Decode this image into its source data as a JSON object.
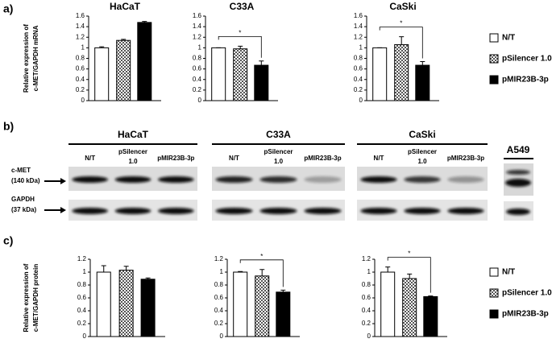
{
  "panels": {
    "a": "a)",
    "b": "b)",
    "c": "c)"
  },
  "chart_data": [
    {
      "type": "bar",
      "title": "HaCaT",
      "ylabel": [
        "Relative expression of",
        "c-MET/GAPDH mRNA"
      ],
      "values": [
        1.0,
        1.14,
        1.48
      ],
      "errors": [
        0.02,
        0.02,
        0.02
      ],
      "ylim": [
        0,
        1.6
      ],
      "yticks": [
        0,
        0.2,
        0.4,
        0.6,
        0.8,
        1,
        1.2,
        1.4,
        1.6
      ]
    },
    {
      "type": "bar",
      "title": "C33A",
      "values": [
        1.0,
        0.98,
        0.67
      ],
      "errors": [
        0.0,
        0.05,
        0.08
      ],
      "ylim": [
        0,
        1.6
      ],
      "yticks": [
        0,
        0.2,
        0.4,
        0.6,
        0.8,
        1,
        1.2,
        1.4,
        1.6
      ],
      "annotation": "*"
    },
    {
      "type": "bar",
      "title": "CaSki",
      "values": [
        1.0,
        1.06,
        0.67
      ],
      "errors": [
        0.0,
        0.15,
        0.07
      ],
      "ylim": [
        0,
        1.6
      ],
      "yticks": [
        0,
        0.2,
        0.4,
        0.6,
        0.8,
        1,
        1.2,
        1.4,
        1.6
      ],
      "annotation": "*"
    },
    {
      "type": "bar",
      "ylabel": [
        "Relative expression of",
        "c-MET/GAPDH protein"
      ],
      "values": [
        1.0,
        1.03,
        0.89
      ],
      "errors": [
        0.1,
        0.06,
        0.02
      ],
      "ylim": [
        0,
        1.2
      ],
      "yticks": [
        0,
        0.2,
        0.4,
        0.6,
        0.8,
        1,
        1.2
      ]
    },
    {
      "type": "bar",
      "values": [
        1.0,
        0.94,
        0.69
      ],
      "errors": [
        0.01,
        0.1,
        0.03
      ],
      "ylim": [
        0,
        1.2
      ],
      "yticks": [
        0,
        0.2,
        0.4,
        0.6,
        0.8,
        1,
        1.2
      ],
      "annotation": "*"
    },
    {
      "type": "bar",
      "values": [
        1.0,
        0.9,
        0.62
      ],
      "errors": [
        0.08,
        0.07,
        0.01
      ],
      "ylim": [
        0,
        1.2
      ],
      "yticks": [
        0,
        0.2,
        0.4,
        0.6,
        0.8,
        1,
        1.2
      ],
      "annotation": "*"
    }
  ],
  "legends": [
    [
      {
        "name": "N/T",
        "color": "#ffffff"
      },
      {
        "name": "pSilencer 1.0",
        "color": "checker"
      },
      {
        "name": "pMIR23B-3p",
        "color": "#000000"
      }
    ],
    [
      {
        "name": "N/T",
        "color": "#ffffff"
      },
      {
        "name": "pSilencer 1.0",
        "color": "checker"
      },
      {
        "name": "pMIR23B-3p",
        "color": "#000000"
      }
    ]
  ],
  "blot": {
    "groups": [
      {
        "title": "HaCaT",
        "lanes": [
          [
            "N/T"
          ],
          [
            "pSilencer",
            "1.0"
          ],
          [
            "pMIR23B-3p"
          ]
        ]
      },
      {
        "title": "C33A",
        "lanes": [
          [
            "N/T"
          ],
          [
            "pSilencer",
            "1.0"
          ],
          [
            "pMIR23B-3p"
          ]
        ]
      },
      {
        "title": "CaSki",
        "lanes": [
          [
            "N/T"
          ],
          [
            "pSilencer",
            "1.0"
          ],
          [
            "pMIR23B-3p"
          ]
        ]
      }
    ],
    "extra": "A549",
    "rows": [
      [
        "c-MET",
        "(140 kDa)"
      ],
      [
        "GAPDH",
        "(37 kDa)"
      ]
    ]
  }
}
